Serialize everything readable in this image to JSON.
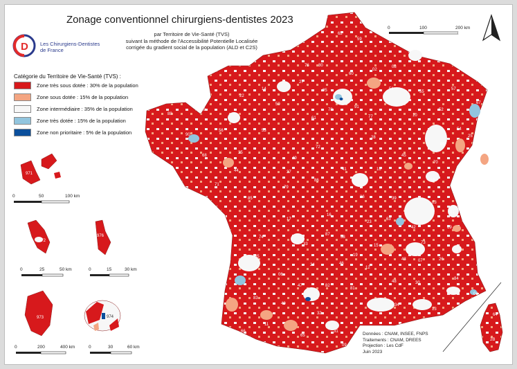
{
  "title": "Zonage conventionnel chirurgiens-dentistes 2023",
  "subtitle_lines": [
    "par Territoire de Vie-Santé (TVS)",
    "suivant la méthode de l'Accessibilité Potentielle Localisée",
    "corrigée du gradient social de la population (ALD et C2S)"
  ],
  "logo": {
    "line1": "Les Chirurgiens-Dentistes",
    "line2": "de France"
  },
  "legend": {
    "title": "Catégorie du Territoire de Vie-Santé (TVS) :",
    "items": [
      {
        "label": "Zone très sous dotée : 30% de la population",
        "color": "#d7191c"
      },
      {
        "label": "Zone sous dotée : 15% de la population",
        "color": "#f4a582"
      },
      {
        "label": "Zone intermédiaire : 35% de la population",
        "color": "#f7f7f7"
      },
      {
        "label": "Zone très dotée : 15% de la population",
        "color": "#92c5de"
      },
      {
        "label": "Zone non prioritaire : 5% de la population",
        "color": "#0b4f9c"
      }
    ]
  },
  "scales": {
    "main": [
      "0",
      "100",
      "200 km"
    ],
    "guadeloupe": [
      "0",
      "50",
      "100 km"
    ],
    "martinique": [
      "0",
      "25",
      "50 km"
    ],
    "mayotte": [
      "0",
      "15",
      "30 km"
    ],
    "guyane": [
      "0",
      "200",
      "400 km"
    ],
    "reunion": [
      "0",
      "30",
      "60 km"
    ]
  },
  "overseas_codes": [
    "971",
    "972",
    "976",
    "973",
    "974"
  ],
  "dept_codes": [
    "62",
    "59",
    "80",
    "02",
    "08",
    "76",
    "60",
    "51",
    "55",
    "57",
    "67",
    "14",
    "27",
    "95",
    "78",
    "91",
    "77",
    "10",
    "52",
    "54",
    "88",
    "29",
    "22",
    "50",
    "61",
    "28",
    "89",
    "70",
    "25",
    "90",
    "56",
    "35",
    "53",
    "72",
    "45",
    "21",
    "68",
    "44",
    "49",
    "37",
    "41",
    "18",
    "58",
    "39",
    "71",
    "85",
    "79",
    "86",
    "36",
    "03",
    "01",
    "74",
    "17",
    "16",
    "87",
    "23",
    "63",
    "42",
    "69",
    "73",
    "38",
    "19",
    "15",
    "43",
    "07",
    "26",
    "05",
    "33",
    "24",
    "46",
    "12",
    "48",
    "30",
    "84",
    "04",
    "06",
    "47",
    "82",
    "81",
    "34",
    "13",
    "83",
    "40",
    "32",
    "31",
    "11",
    "65",
    "09",
    "66",
    "64",
    "2B",
    "2A"
  ],
  "credits": [
    "Données : CNAM, INSEE, FNPS",
    "Traitements : CNAM, DREES",
    "Projection : Les CdF",
    "Juin 2023"
  ],
  "north_label": "N"
}
